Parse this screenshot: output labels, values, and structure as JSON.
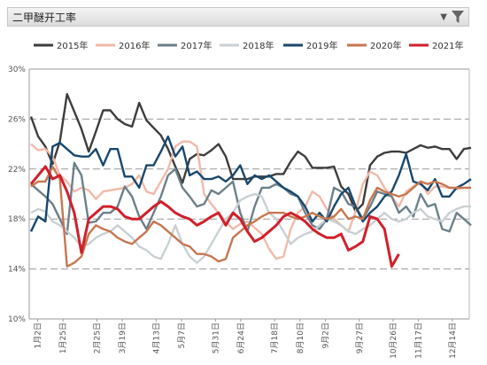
{
  "header": {
    "title": "二甲醚开工率",
    "dropdown_icon": "chevron-down-icon",
    "filter_icon": "filter-icon"
  },
  "chart_data": {
    "type": "line",
    "title": "",
    "xlabel": "",
    "ylabel": "",
    "ylim": [
      10,
      30
    ],
    "yticks": [
      "10%",
      "14%",
      "18%",
      "22%",
      "26%",
      "30%"
    ],
    "ytick_values": [
      10,
      14,
      18,
      22,
      26,
      30
    ],
    "xticks": [
      "1月2日",
      "1月25日",
      "2月25日",
      "3月19日",
      "4月13日",
      "5月7日",
      "5月31日",
      "6月24日",
      "7月18日",
      "8月10日",
      "9月2日",
      "9月27日",
      "10月26日",
      "11月17日",
      "12月14日"
    ],
    "xtick_weeks": [
      1,
      4,
      8,
      11,
      15,
      18,
      22,
      25,
      29,
      32,
      35,
      39,
      43,
      46,
      50
    ],
    "x_unit_weeks": 52,
    "grid": "horizontal dashed",
    "legend_position": "top",
    "series": [
      {
        "name": "2015年",
        "color": "#3d3d3d",
        "values": [
          26.2,
          24.6,
          23.8,
          22.4,
          24.2,
          28.0,
          26.6,
          25.2,
          23.4,
          25.0,
          26.7,
          26.7,
          26.0,
          25.6,
          25.4,
          27.3,
          25.9,
          25.3,
          24.7,
          23.6,
          22.2,
          20.9,
          22.8,
          23.2,
          23.1,
          23.5,
          24.0,
          23.0,
          21.2,
          21.2,
          21.2,
          21.4,
          21.4,
          21.4,
          21.6,
          21.6,
          22.6,
          23.4,
          23.0,
          22.1,
          22.1,
          22.1,
          22.2,
          20.6,
          20.0,
          18.6,
          19.2,
          22.3,
          23.0,
          23.3,
          23.4,
          23.4,
          23.3,
          23.6,
          23.9,
          23.7,
          23.8,
          23.6,
          23.6,
          22.8,
          23.6,
          23.7
        ]
      },
      {
        "name": "2016年",
        "color": "#f2b9a8",
        "values": [
          24.0,
          23.5,
          23.6,
          23.0,
          21.5,
          21.0,
          20.2,
          20.5,
          20.3,
          19.6,
          20.2,
          20.3,
          20.4,
          20.5,
          20.8,
          21.5,
          20.2,
          20.0,
          21.0,
          22.0,
          23.8,
          24.2,
          24.2,
          23.8,
          20.0,
          19.2,
          18.5,
          17.8,
          17.2,
          17.6,
          17.8,
          17.3,
          16.8,
          15.6,
          14.8,
          15.0,
          17.2,
          18.5,
          19.0,
          20.2,
          19.8,
          18.8,
          18.0,
          17.5,
          17.0,
          18.6,
          20.8,
          21.8,
          21.5,
          20.5,
          19.8,
          19.0,
          20.2,
          20.6,
          21.0,
          20.0,
          20.6,
          20.6,
          20.5,
          20.4,
          20.5,
          20.5
        ]
      },
      {
        "name": "2017年",
        "color": "#6c8088",
        "values": [
          20.8,
          20.3,
          19.8,
          19.2,
          18.0,
          16.8,
          22.5,
          21.5,
          17.7,
          17.8,
          18.5,
          18.5,
          19.0,
          20.6,
          19.8,
          18.2,
          17.2,
          18.5,
          19.8,
          21.5,
          22.0,
          20.5,
          19.8,
          19.0,
          19.2,
          20.3,
          20.0,
          20.5,
          21.0,
          18.5,
          17.0,
          19.0,
          20.5,
          20.5,
          20.8,
          20.5,
          20.0,
          19.8,
          18.5,
          17.5,
          17.2,
          18.0,
          20.5,
          20.2,
          19.2,
          19.0,
          18.0,
          19.0,
          20.2,
          20.0,
          19.8,
          18.5,
          19.0,
          18.2,
          20.0,
          19.0,
          19.2,
          17.2,
          17.0,
          18.5,
          18.0,
          17.5
        ]
      },
      {
        "name": "2018年",
        "color": "#c9d0d3",
        "values": [
          18.5,
          18.8,
          18.6,
          17.8,
          17.5,
          17.0,
          16.5,
          15.8,
          16.0,
          16.5,
          16.8,
          17.0,
          17.5,
          17.0,
          16.5,
          15.8,
          15.5,
          15.0,
          14.8,
          16.0,
          17.5,
          16.0,
          15.0,
          14.5,
          15.0,
          16.0,
          17.0,
          18.0,
          18.5,
          19.5,
          19.8,
          20.0,
          19.8,
          18.5,
          18.0,
          17.0,
          16.0,
          16.5,
          16.8,
          17.0,
          17.5,
          18.0,
          17.8,
          17.5,
          17.0,
          16.8,
          17.2,
          17.5,
          18.0,
          18.5,
          18.0,
          17.8,
          18.0,
          18.5,
          18.8,
          18.2,
          18.0,
          17.8,
          18.5,
          18.8,
          19.0,
          19.0
        ]
      },
      {
        "name": "2019年",
        "color": "#17476e",
        "values": [
          17.0,
          18.2,
          17.8,
          23.8,
          24.1,
          23.6,
          23.1,
          23.0,
          23.0,
          23.6,
          22.3,
          23.6,
          23.6,
          21.4,
          21.4,
          20.5,
          22.3,
          22.3,
          23.4,
          24.6,
          23.0,
          23.8,
          21.5,
          21.8,
          21.2,
          21.2,
          21.4,
          21.0,
          21.5,
          22.3,
          20.8,
          21.5,
          21.2,
          21.5,
          21.0,
          20.5,
          20.2,
          19.8,
          19.0,
          17.8,
          18.5,
          17.8,
          19.0,
          20.0,
          20.5,
          19.0,
          17.8,
          18.5,
          19.0,
          19.8,
          20.2,
          21.5,
          23.2,
          21.0,
          20.8,
          20.3,
          21.2,
          19.8,
          19.8,
          20.5,
          20.8,
          21.2
        ]
      },
      {
        "name": "2020年",
        "color": "#c77650",
        "values": [
          20.6,
          21.0,
          21.0,
          22.2,
          21.2,
          14.2,
          14.5,
          15.0,
          16.8,
          17.5,
          17.2,
          17.0,
          16.5,
          16.2,
          16.0,
          16.5,
          17.0,
          17.8,
          17.5,
          17.0,
          16.5,
          16.0,
          15.8,
          15.2,
          15.2,
          15.0,
          14.6,
          14.8,
          16.5,
          17.0,
          17.5,
          17.8,
          18.2,
          18.5,
          18.5,
          18.5,
          18.2,
          18.0,
          18.2,
          18.5,
          18.2,
          18.0,
          18.2,
          18.8,
          18.0,
          18.2,
          18.0,
          19.5,
          20.5,
          20.2,
          20.0,
          19.8,
          20.0,
          20.5,
          21.0,
          20.8,
          21.0,
          20.8,
          20.5,
          20.5,
          20.5,
          20.5
        ]
      },
      {
        "name": "2021年",
        "color": "#d11f2a",
        "values": [
          20.8,
          21.5,
          22.2,
          21.2,
          21.5,
          20.2,
          18.5,
          15.3,
          18.0,
          18.5,
          19.0,
          19.0,
          18.8,
          18.2,
          18.0,
          18.0,
          18.5,
          19.0,
          19.4,
          19.0,
          18.5,
          18.2,
          18.0,
          17.5,
          17.8,
          18.2,
          18.5,
          17.5,
          18.5,
          18.0,
          17.0,
          16.2,
          16.5,
          17.0,
          17.5,
          18.2,
          18.5,
          18.2,
          17.8,
          17.2,
          16.8,
          16.5,
          16.5,
          16.8,
          15.5,
          15.8,
          16.2,
          18.2,
          18.0,
          17.2,
          14.2,
          15.2
        ]
      }
    ]
  }
}
